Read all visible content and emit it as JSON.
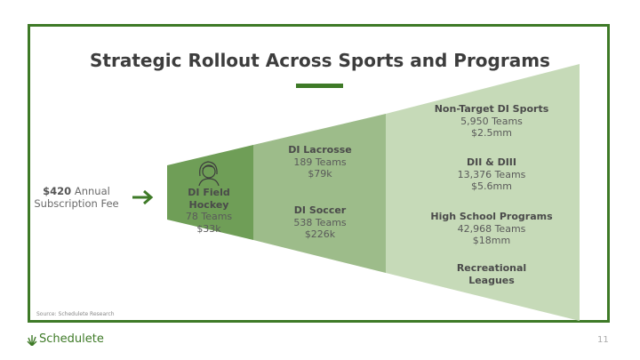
{
  "slide": {
    "title": "Strategic Rollout Across Sports and Programs",
    "source": "Source: Schedulete Research",
    "brand": "Schedulete",
    "page_number": "11"
  },
  "fee": {
    "amount": "$420",
    "line1_rest": "Annual",
    "line2": "Subscription Fee"
  },
  "segments": {
    "field_hockey": {
      "name": "DI Field Hockey",
      "teams": "78 Teams",
      "value": "$33k"
    },
    "lacrosse": {
      "name": "DI Lacrosse",
      "teams": "189 Teams",
      "value": "$79k"
    },
    "soccer": {
      "name": "DI Soccer",
      "teams": "538 Teams",
      "value": "$226k"
    },
    "non_target": {
      "name": "Non-Target DI Sports",
      "teams": "5,950 Teams",
      "value": "$2.5mm"
    },
    "dii_diii": {
      "name": "DII & DIII",
      "teams": "13,376 Teams",
      "value": "$5.6mm"
    },
    "high_school": {
      "name": "High School Programs",
      "teams": "42,968 Teams",
      "value": "$18mm"
    },
    "recreational": {
      "line1": "Recreational",
      "line2": "Leagues"
    }
  },
  "colors": {
    "brand_green": "#3e7a27",
    "funnel_dark": "#6f9e57",
    "funnel_mid": "#9dbc8a",
    "funnel_light": "#c6dab8"
  },
  "icons": {
    "person": "female-athlete-icon",
    "arrow": "arrow-right-icon",
    "brand": "grass-icon"
  }
}
